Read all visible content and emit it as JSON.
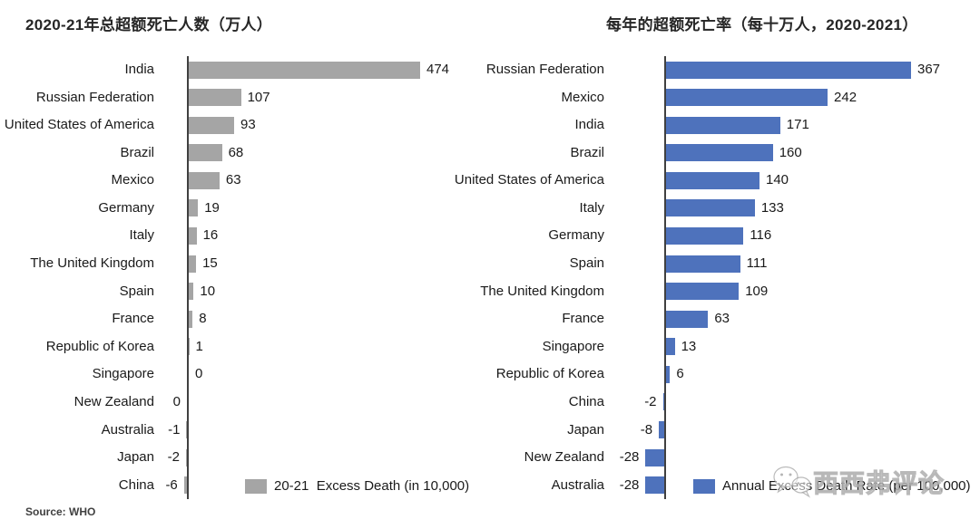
{
  "page": {
    "background": "#ffffff"
  },
  "source_note": "Source: WHO",
  "watermark": {
    "icon": "wechat-logo-icon",
    "text": "西西弗评论"
  },
  "chart_data": [
    {
      "type": "bar",
      "orientation": "horizontal",
      "title": "2020-21年总超额死亡人数（万人）",
      "legend": "20-21  Excess Death (in 10,000)",
      "legend_position": "bottom",
      "bar_color": "#a5a5a5",
      "grid": false,
      "axis_max": 474,
      "xlim": [
        -6,
        474
      ],
      "categories": [
        "India",
        "Russian Federation",
        "United States of America",
        "Brazil",
        "Mexico",
        "Germany",
        "Italy",
        "The United Kingdom",
        "Spain",
        "France",
        "Republic of Korea",
        "Singapore",
        "New Zealand",
        "Australia",
        "Japan",
        "China"
      ],
      "values": [
        474,
        107,
        93,
        68,
        63,
        19,
        16,
        15,
        10,
        8,
        1,
        0,
        0,
        -1,
        -2,
        -6
      ],
      "value_label_sides": [
        "right",
        "right",
        "right",
        "right",
        "right",
        "right",
        "right",
        "right",
        "right",
        "right",
        "right",
        "right",
        "left",
        "left",
        "left",
        "left"
      ]
    },
    {
      "type": "bar",
      "orientation": "horizontal",
      "title": "每年的超额死亡率（每十万人，2020-2021）",
      "legend": "Annual Excess Death Rate (per 100,000)",
      "legend_position": "bottom",
      "bar_color": "#4e72bc",
      "grid": false,
      "axis_max": 367,
      "xlim": [
        -28,
        367
      ],
      "categories": [
        "Russian Federation",
        "Mexico",
        "India",
        "Brazil",
        "United States of America",
        "Italy",
        "Germany",
        "Spain",
        "The United Kingdom",
        "France",
        "Singapore",
        "Republic of Korea",
        "China",
        "Japan",
        "New Zealand",
        "Australia"
      ],
      "values": [
        367,
        242,
        171,
        160,
        140,
        133,
        116,
        111,
        109,
        63,
        13,
        6,
        -2,
        -8,
        -28,
        -28
      ],
      "value_label_sides": [
        "right",
        "right",
        "right",
        "right",
        "right",
        "right",
        "right",
        "right",
        "right",
        "right",
        "right",
        "right",
        "left",
        "left",
        "left",
        "left"
      ]
    }
  ]
}
